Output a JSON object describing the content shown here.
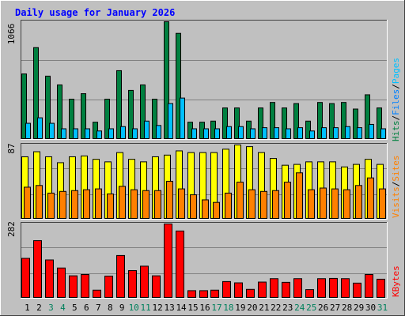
{
  "title": "Daily usage for January 2026",
  "colors": {
    "background": "#c0c0c0",
    "title_text": "#0000ff",
    "hits": "#008040",
    "files": "#0080ff",
    "pages": "#00c0ff",
    "visits": "#ff8000",
    "sites": "#ff8000",
    "visits_bar": "#ffff00",
    "kbytes": "#ff0000",
    "weekend_label": "#00805c"
  },
  "chart_data": [
    {
      "type": "bar",
      "panel": "hits-files-pages",
      "ymax_label": "1066",
      "ylim": [
        0,
        1066
      ],
      "grid": true,
      "categories": [
        "1",
        "2",
        "3",
        "4",
        "5",
        "6",
        "7",
        "8",
        "9",
        "10",
        "11",
        "12",
        "13",
        "14",
        "15",
        "16",
        "17",
        "18",
        "19",
        "20",
        "21",
        "22",
        "23",
        "24",
        "25",
        "26",
        "27",
        "28",
        "29",
        "30",
        "31"
      ],
      "legend": [
        {
          "label": "Hits",
          "color": "#008040"
        },
        {
          "label": "/",
          "color": "#000000"
        },
        {
          "label": "Files",
          "color": "#0080ff"
        },
        {
          "label": "/",
          "color": "#000000"
        },
        {
          "label": "Pages",
          "color": "#00c0ff"
        }
      ],
      "series": [
        {
          "name": "Hits",
          "values": [
            590,
            830,
            570,
            490,
            360,
            410,
            150,
            360,
            620,
            440,
            490,
            360,
            1066,
            960,
            150,
            150,
            160,
            280,
            280,
            160,
            280,
            330,
            280,
            320,
            160,
            330,
            320,
            330,
            270,
            400,
            280
          ]
        },
        {
          "name": "Pages",
          "values": [
            140,
            190,
            140,
            90,
            90,
            90,
            70,
            90,
            110,
            90,
            160,
            120,
            320,
            370,
            90,
            90,
            90,
            110,
            110,
            90,
            100,
            100,
            90,
            100,
            70,
            100,
            100,
            110,
            100,
            130,
            90
          ]
        }
      ]
    },
    {
      "type": "bar",
      "panel": "visits-sites",
      "ymax_label": "87",
      "ylim": [
        0,
        87
      ],
      "grid": true,
      "categories": [
        "1",
        "2",
        "3",
        "4",
        "5",
        "6",
        "7",
        "8",
        "9",
        "10",
        "11",
        "12",
        "13",
        "14",
        "15",
        "16",
        "17",
        "18",
        "19",
        "20",
        "21",
        "22",
        "23",
        "24",
        "25",
        "26",
        "27",
        "28",
        "29",
        "30",
        "31"
      ],
      "legend": [
        {
          "label": "Visits",
          "color": "#ff8000"
        },
        {
          "label": "/",
          "color": "#000000"
        },
        {
          "label": "Sites",
          "color": "#ff8000"
        }
      ],
      "series": [
        {
          "name": "Visits",
          "values": [
            73,
            79,
            73,
            66,
            73,
            74,
            70,
            67,
            78,
            70,
            67,
            73,
            75,
            80,
            78,
            78,
            78,
            82,
            87,
            85,
            78,
            71,
            63,
            64,
            67,
            67,
            67,
            61,
            64,
            70,
            64
          ]
        },
        {
          "name": "Sites",
          "values": [
            37,
            39,
            30,
            32,
            33,
            34,
            35,
            29,
            38,
            34,
            33,
            33,
            44,
            35,
            28,
            22,
            19,
            30,
            43,
            34,
            32,
            33,
            43,
            54,
            34,
            36,
            35,
            34,
            39,
            48,
            35
          ]
        }
      ]
    },
    {
      "type": "bar",
      "panel": "kbytes",
      "ymax_label": "282",
      "ylim": [
        0,
        282
      ],
      "grid": true,
      "categories": [
        "1",
        "2",
        "3",
        "4",
        "5",
        "6",
        "7",
        "8",
        "9",
        "10",
        "11",
        "12",
        "13",
        "14",
        "15",
        "16",
        "17",
        "18",
        "19",
        "20",
        "21",
        "22",
        "23",
        "24",
        "25",
        "26",
        "27",
        "28",
        "29",
        "30",
        "31"
      ],
      "legend": [
        {
          "label": "KBytes",
          "color": "#ff0000"
        }
      ],
      "series": [
        {
          "name": "KBytes",
          "values": [
            150,
            218,
            144,
            113,
            83,
            88,
            28,
            82,
            161,
            103,
            120,
            83,
            282,
            255,
            26,
            26,
            28,
            61,
            56,
            31,
            59,
            72,
            58,
            72,
            30,
            72,
            73,
            72,
            55,
            88,
            70
          ]
        }
      ]
    }
  ],
  "weekend_days": [
    3,
    4,
    10,
    11,
    17,
    18,
    24,
    25,
    31
  ]
}
